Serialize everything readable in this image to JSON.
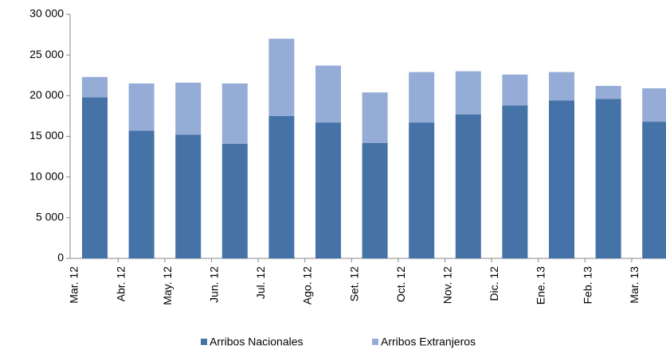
{
  "chart_data": {
    "type": "stacked_bar",
    "categories": [
      "Mar. 12",
      "Abr. 12",
      "May. 12",
      "Jun. 12",
      "Jul. 12",
      "Ago. 12",
      "Set. 12",
      "Oct. 12",
      "Nov. 12",
      "Dic. 12",
      "Ene. 13",
      "Feb. 13",
      "Mar. 13"
    ],
    "series": [
      {
        "name": "Arribos Nacionales",
        "color": "#4572a7",
        "values": [
          19800,
          15700,
          15200,
          14100,
          17500,
          16700,
          14200,
          16700,
          17700,
          18800,
          19400,
          19600,
          16800
        ]
      },
      {
        "name": "Arribos Extranjeros",
        "color": "#95acd6",
        "values": [
          2500,
          5800,
          6400,
          7400,
          9500,
          7000,
          6200,
          6200,
          5300,
          3800,
          3500,
          1600,
          4100
        ]
      }
    ],
    "ylim": [
      0,
      30000
    ],
    "yticks": [
      0,
      {
        "value": 5000,
        "label": "5 000"
      },
      {
        "value": 10000,
        "label": "10 000"
      },
      {
        "value": 15000,
        "label": "15 000"
      },
      {
        "value": 20000,
        "label": "20 000"
      },
      {
        "value": 25000,
        "label": "25 000"
      },
      {
        "value": 30000,
        "label": "30 000"
      }
    ],
    "legend": "bottom"
  }
}
